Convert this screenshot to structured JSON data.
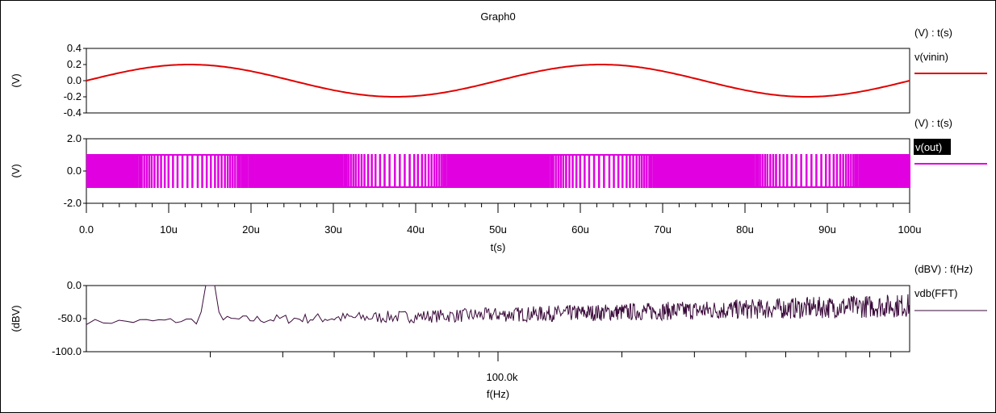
{
  "window": {
    "title": "Graph0"
  },
  "colors": {
    "vinin": "#e00000",
    "out": "#e000e0",
    "fft": "#3a0a3a",
    "axis": "#000000",
    "background": "#ffffff"
  },
  "chart_data": [
    {
      "type": "line",
      "title": "",
      "units_label": "(V) : t(s)",
      "ylabel": "(V)",
      "xlabel": "",
      "xlim": [
        0,
        100
      ],
      "ylim": [
        -0.4,
        0.4
      ],
      "y_ticks": [
        "0.4",
        "0.2",
        "0.0",
        "-0.2",
        "-0.4"
      ],
      "y_tick_values": [
        0.4,
        0.2,
        0.0,
        -0.2,
        -0.4
      ],
      "grid": false,
      "series": [
        {
          "name": "v(vinin)",
          "function": "sine",
          "amplitude": 0.2,
          "period_x": 50,
          "start_x": 0,
          "end_x": 100
        }
      ]
    },
    {
      "type": "line",
      "title": "",
      "units_label": "(V) : t(s)",
      "ylabel": "(V)",
      "xlabel": "t(s)",
      "xlim": [
        0,
        100
      ],
      "ylim": [
        -2.0,
        2.0
      ],
      "y_ticks": [
        "2.0",
        "0.0",
        "-2.0"
      ],
      "y_tick_values": [
        2.0,
        0.0,
        -2.0
      ],
      "x_ticks": [
        "0.0",
        "10u",
        "20u",
        "30u",
        "40u",
        "50u",
        "60u",
        "70u",
        "80u",
        "90u",
        "100u"
      ],
      "x_tick_values": [
        0,
        10,
        20,
        30,
        40,
        50,
        60,
        70,
        80,
        90,
        100
      ],
      "grid": false,
      "series": [
        {
          "name": "v(out)",
          "function": "square",
          "high": 1.0,
          "low": -1.0,
          "highlighted_label": true
        }
      ]
    },
    {
      "type": "line",
      "title": "",
      "units_label": "(dBV) : f(Hz)",
      "ylabel": "(dBV)",
      "xlabel": "f(Hz)",
      "x_scale": "log",
      "xlim": [
        10000,
        1000000
      ],
      "x_ticks": [
        "100.0k"
      ],
      "x_tick_values": [
        100000
      ],
      "ylim": [
        -100,
        0
      ],
      "y_ticks": [
        "0.0",
        "-50.0",
        "-100.0"
      ],
      "y_tick_values": [
        0,
        -50,
        -100
      ],
      "grid": false,
      "series": [
        {
          "name": "vdb(FFT)",
          "function": "noise-spectrum",
          "peak_x": 20000,
          "peak_y": 0,
          "baseline_start": -55,
          "baseline_end": -30
        }
      ]
    }
  ]
}
